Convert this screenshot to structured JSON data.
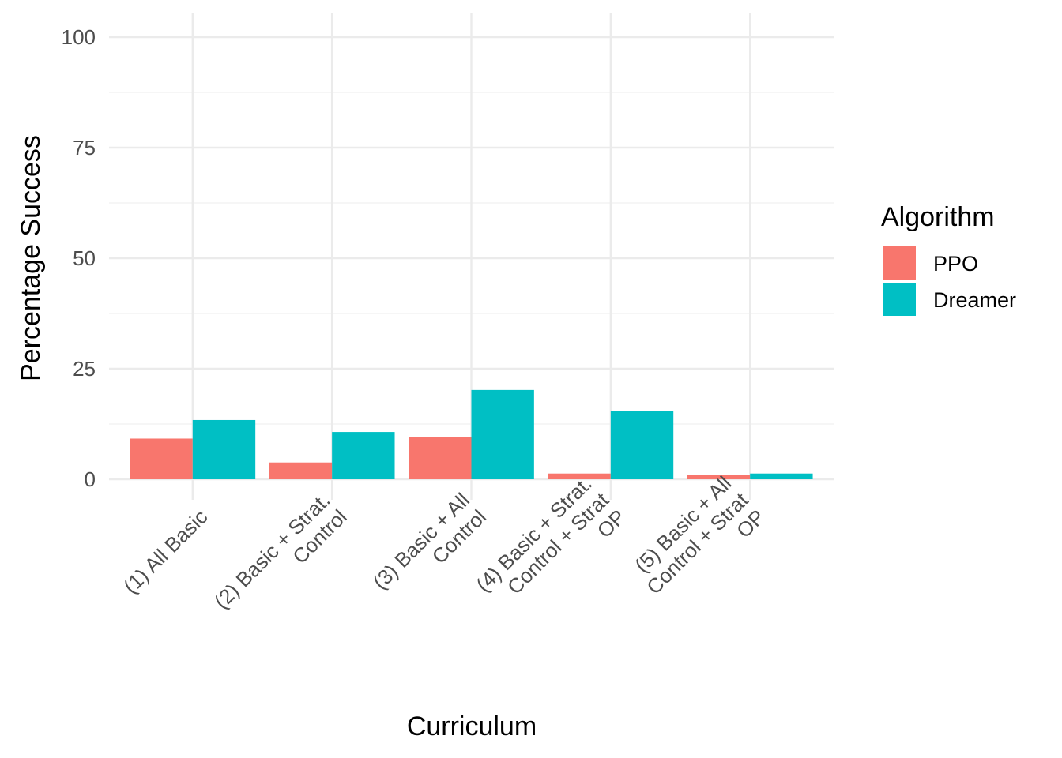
{
  "chart_data": {
    "type": "bar",
    "title": "",
    "xlabel": "Curriculum",
    "ylabel": "Percentage Success",
    "ylim": [
      0,
      100
    ],
    "yticks": [
      0,
      25,
      50,
      75,
      100
    ],
    "grid": true,
    "legend": {
      "title": "Algorithm",
      "placement": "right"
    },
    "categories": [
      [
        "(1) All Basic"
      ],
      [
        "(2) Basic + Strat.",
        "Control"
      ],
      [
        "(3) Basic + All",
        "Control"
      ],
      [
        "(4) Basic + Strat.",
        "Control + Strat",
        "OP"
      ],
      [
        "(5) Basic + All",
        "Control + Strat",
        "OP"
      ]
    ],
    "series": [
      {
        "name": "PPO",
        "color": "#F8766D",
        "values": [
          9.2,
          3.8,
          9.5,
          1.3,
          0.9
        ]
      },
      {
        "name": "Dreamer",
        "color": "#00BFC4",
        "values": [
          13.4,
          10.7,
          20.2,
          15.4,
          1.3
        ]
      }
    ]
  }
}
